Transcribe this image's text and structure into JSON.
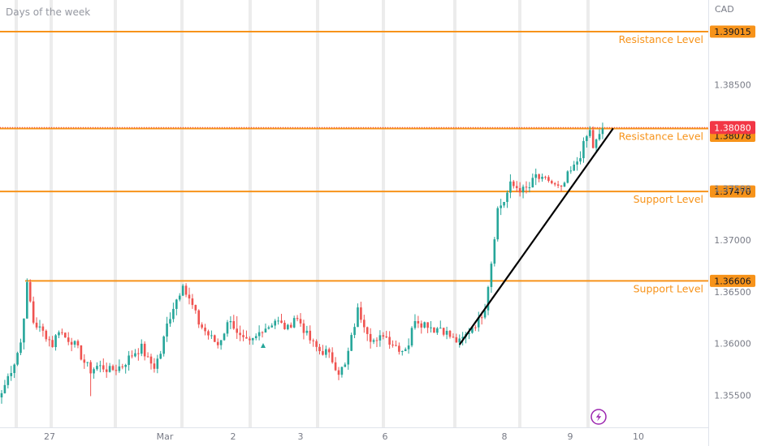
{
  "header": {
    "title": "Days of the week"
  },
  "colors": {
    "up": "#26a69a",
    "down": "#ef5350",
    "level": "#f7931a",
    "level_label_bg": "#f7931a",
    "price_badge": "#f23645",
    "trendline": "#000000",
    "session_band": "#ececec",
    "axis_text": "#787b86",
    "lightning": "#9c27b0"
  },
  "icons": {
    "lightning": "lightning-icon",
    "marker": "triangle-marker-icon"
  },
  "chart_data": {
    "type": "candlestick",
    "title": "Days of the week",
    "currency": "CAD",
    "y_ticks": [
      1.355,
      1.36,
      1.365,
      1.37,
      1.375,
      1.385
    ],
    "y_tick_labels": [
      "1.35500",
      "1.36000",
      "1.36500",
      "1.37000",
      "1.37500",
      "1.38500"
    ],
    "ylim": [
      1.3535,
      1.3928
    ],
    "x_ticks": [
      "27",
      "Mar",
      "2",
      "3",
      "6",
      "8",
      "9",
      "10"
    ],
    "current_price": "1.38080",
    "horizontal_levels": [
      {
        "price": 1.39015,
        "price_label": "1.39015",
        "label": "Resistance Level"
      },
      {
        "price": 1.38078,
        "price_label": "1.38078",
        "label": "Resistance Level"
      },
      {
        "price": 1.3747,
        "price_label": "1.37470",
        "label": "Support Level"
      },
      {
        "price": 1.36606,
        "price_label": "1.36606",
        "label": "Support Level"
      }
    ],
    "trendline": {
      "from": {
        "bar": 144,
        "price": 1.3599
      },
      "to": {
        "bar": 189,
        "price": 1.3808
      }
    },
    "anchors": [
      [
        0,
        1.3552
      ],
      [
        2,
        1.3568
      ],
      [
        4,
        1.3582
      ],
      [
        6,
        1.3601
      ],
      [
        7,
        1.3628
      ],
      [
        8,
        1.3656
      ],
      [
        9,
        1.364
      ],
      [
        10,
        1.3621
      ],
      [
        12,
        1.3614
      ],
      [
        14,
        1.3608
      ],
      [
        16,
        1.3599
      ],
      [
        18,
        1.3614
      ],
      [
        20,
        1.3606
      ],
      [
        22,
        1.3603
      ],
      [
        24,
        1.3594
      ],
      [
        26,
        1.3582
      ],
      [
        28,
        1.3574
      ],
      [
        30,
        1.3578
      ],
      [
        32,
        1.3577
      ],
      [
        34,
        1.3574
      ],
      [
        36,
        1.3576
      ],
      [
        38,
        1.3579
      ],
      [
        40,
        1.3586
      ],
      [
        42,
        1.3592
      ],
      [
        44,
        1.3596
      ],
      [
        46,
        1.3584
      ],
      [
        48,
        1.3578
      ],
      [
        50,
        1.3591
      ],
      [
        52,
        1.3618
      ],
      [
        54,
        1.3636
      ],
      [
        56,
        1.365
      ],
      [
        57,
        1.366
      ],
      [
        58,
        1.3648
      ],
      [
        60,
        1.3636
      ],
      [
        62,
        1.362
      ],
      [
        64,
        1.3612
      ],
      [
        66,
        1.3605
      ],
      [
        68,
        1.3599
      ],
      [
        70,
        1.3612
      ],
      [
        72,
        1.3625
      ],
      [
        74,
        1.3608
      ],
      [
        76,
        1.3602
      ],
      [
        78,
        1.36
      ],
      [
        80,
        1.3606
      ],
      [
        82,
        1.3615
      ],
      [
        84,
        1.3617
      ],
      [
        86,
        1.3623
      ],
      [
        88,
        1.3618
      ],
      [
        90,
        1.3614
      ],
      [
        92,
        1.3626
      ],
      [
        94,
        1.362
      ],
      [
        96,
        1.3608
      ],
      [
        98,
        1.3599
      ],
      [
        100,
        1.3593
      ],
      [
        102,
        1.3592
      ],
      [
        104,
        1.3584
      ],
      [
        106,
        1.3573
      ],
      [
        108,
        1.3578
      ],
      [
        110,
        1.3605
      ],
      [
        112,
        1.3632
      ],
      [
        114,
        1.362
      ],
      [
        116,
        1.3606
      ],
      [
        118,
        1.36
      ],
      [
        120,
        1.361
      ],
      [
        122,
        1.3603
      ],
      [
        124,
        1.3598
      ],
      [
        126,
        1.3594
      ],
      [
        128,
        1.36
      ],
      [
        130,
        1.3625
      ],
      [
        132,
        1.362
      ],
      [
        134,
        1.3619
      ],
      [
        136,
        1.3614
      ],
      [
        138,
        1.3616
      ],
      [
        140,
        1.361
      ],
      [
        142,
        1.3604
      ],
      [
        144,
        1.3601
      ],
      [
        146,
        1.3608
      ],
      [
        148,
        1.3617
      ],
      [
        150,
        1.3622
      ],
      [
        152,
        1.3636
      ],
      [
        154,
        1.3679
      ],
      [
        155,
        1.3705
      ],
      [
        156,
        1.373
      ],
      [
        158,
        1.3738
      ],
      [
        160,
        1.3753
      ],
      [
        162,
        1.3751
      ],
      [
        164,
        1.3748
      ],
      [
        166,
        1.3751
      ],
      [
        168,
        1.3762
      ],
      [
        170,
        1.3757
      ],
      [
        172,
        1.3758
      ],
      [
        174,
        1.3752
      ],
      [
        176,
        1.3748
      ],
      [
        178,
        1.3762
      ],
      [
        180,
        1.377
      ],
      [
        182,
        1.3783
      ],
      [
        184,
        1.38
      ],
      [
        185,
        1.3805
      ],
      [
        186,
        1.379
      ],
      [
        188,
        1.38
      ],
      [
        189,
        1.3808
      ]
    ]
  }
}
